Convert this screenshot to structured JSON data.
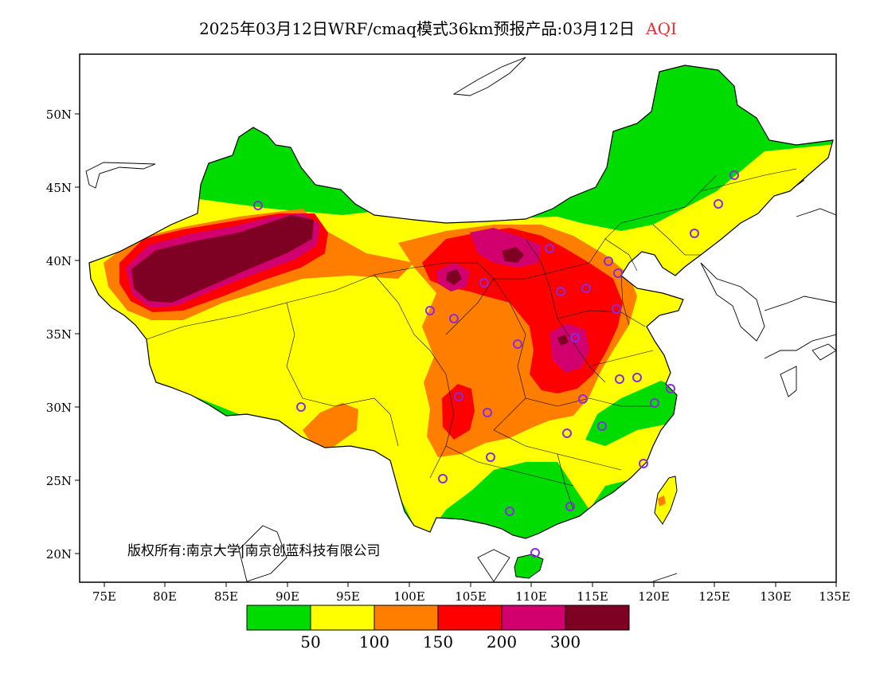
{
  "title": {
    "main": "2025年03月12日WRF/cmaq模式36km预报产品:03月12日",
    "variable": "AQI"
  },
  "axes": {
    "lon_ticks": [
      "75E",
      "80E",
      "85E",
      "90E",
      "95E",
      "100E",
      "105E",
      "110E",
      "115E",
      "120E",
      "125E",
      "130E",
      "135E"
    ],
    "lat_ticks": [
      "50N",
      "45N",
      "40N",
      "35N",
      "30N",
      "25N",
      "20N"
    ]
  },
  "legend": {
    "colors": [
      "#00dc00",
      "#ffff00",
      "#ff7e00",
      "#ff0000",
      "#d2006e",
      "#7e0023"
    ],
    "labels": [
      "50",
      "100",
      "150",
      "200",
      "300"
    ]
  },
  "copyright": "版权所有:南京大学|南京创蓝科技有限公司",
  "colors": {
    "good": "#00dc00",
    "moderate": "#ffff00",
    "usg": "#ff7e00",
    "unhealthy": "#ff0000",
    "very_unhealthy": "#d2006e",
    "hazardous": "#7e0023",
    "station_marker": "#8a2be2"
  },
  "icons": {
    "station": "circle-marker"
  }
}
